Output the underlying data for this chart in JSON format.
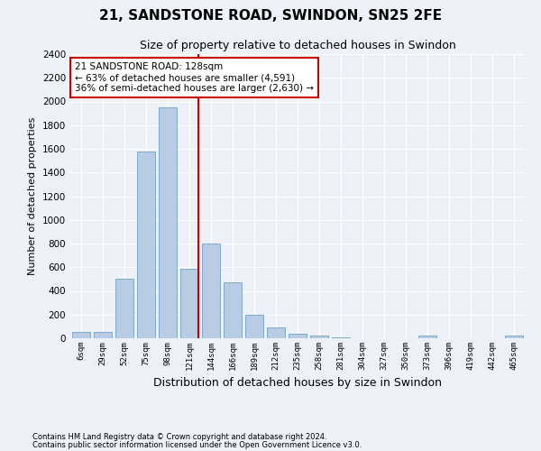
{
  "title": "21, SANDSTONE ROAD, SWINDON, SN25 2FE",
  "subtitle": "Size of property relative to detached houses in Swindon",
  "xlabel": "Distribution of detached houses by size in Swindon",
  "ylabel": "Number of detached properties",
  "categories": [
    "6sqm",
    "29sqm",
    "52sqm",
    "75sqm",
    "98sqm",
    "121sqm",
    "144sqm",
    "166sqm",
    "189sqm",
    "212sqm",
    "235sqm",
    "258sqm",
    "281sqm",
    "304sqm",
    "327sqm",
    "350sqm",
    "373sqm",
    "396sqm",
    "419sqm",
    "442sqm",
    "465sqm"
  ],
  "values": [
    50,
    50,
    500,
    1580,
    1950,
    590,
    800,
    475,
    195,
    90,
    35,
    25,
    5,
    2,
    2,
    2,
    20,
    2,
    2,
    2,
    20
  ],
  "bar_color": "#b8cce4",
  "bar_edge_color": "#7faacd",
  "vline_x_index": 5,
  "vline_color": "#cc0000",
  "annotation_text": "21 SANDSTONE ROAD: 128sqm\n← 63% of detached houses are smaller (4,591)\n36% of semi-detached houses are larger (2,630) →",
  "annotation_box_color": "white",
  "annotation_box_edge": "#cc0000",
  "ylim": [
    0,
    2400
  ],
  "yticks": [
    0,
    200,
    400,
    600,
    800,
    1000,
    1200,
    1400,
    1600,
    1800,
    2000,
    2200,
    2400
  ],
  "footer1": "Contains HM Land Registry data © Crown copyright and database right 2024.",
  "footer2": "Contains public sector information licensed under the Open Government Licence v3.0.",
  "bg_color": "#eef2f8",
  "plot_bg_color": "#eef2f8"
}
